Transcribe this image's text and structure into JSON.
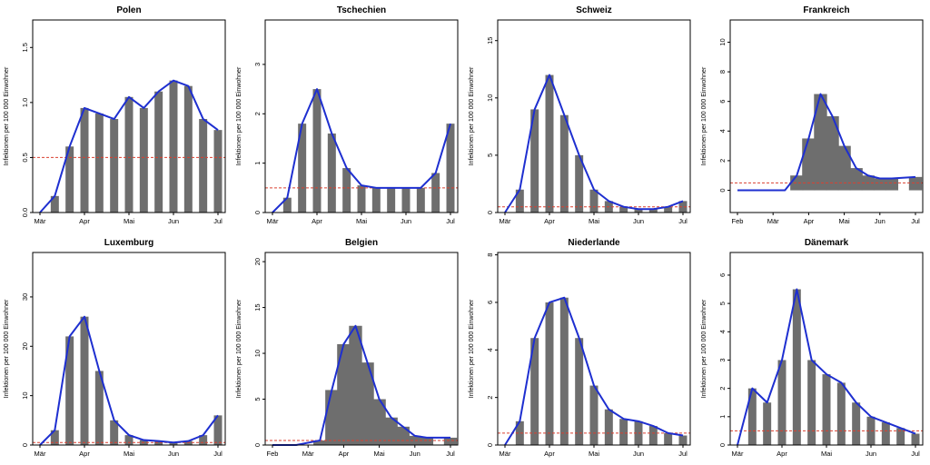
{
  "chart_data": [
    {
      "type": "bar",
      "title": "Polen",
      "ylabel": "Infektionen per 100 000 Einwohner",
      "x_ticks": [
        "Mär",
        "Apr",
        "Mai",
        "Jun",
        "Jul"
      ],
      "y_ticks": [
        "0.0",
        "0.5",
        "1.0",
        "1.5"
      ],
      "ylim": [
        0,
        1.75
      ],
      "threshold": 0.5,
      "series": [
        {
          "name": "",
          "kind": "bar",
          "x": [
            0,
            10,
            20,
            30,
            40,
            50,
            60,
            70,
            80,
            90,
            100,
            110,
            120
          ],
          "values": [
            0.0,
            0.15,
            0.6,
            0.95,
            0.9,
            0.85,
            1.05,
            0.95,
            1.1,
            1.2,
            1.15,
            0.85,
            0.75
          ]
        },
        {
          "name": "",
          "kind": "line",
          "x": [
            0,
            10,
            20,
            30,
            40,
            50,
            60,
            70,
            80,
            90,
            100,
            110,
            120
          ],
          "values": [
            0.0,
            0.15,
            0.6,
            0.95,
            0.9,
            0.85,
            1.05,
            0.95,
            1.1,
            1.2,
            1.15,
            0.85,
            0.75
          ]
        }
      ]
    },
    {
      "type": "bar",
      "title": "Tschechien",
      "ylabel": "Infektionen per 100 000 Einwohner",
      "x_ticks": [
        "Mär",
        "Apr",
        "Mai",
        "Jun",
        "Jul"
      ],
      "y_ticks": [
        "0",
        "1",
        "2",
        "3"
      ],
      "ylim": [
        0,
        3.9
      ],
      "threshold": 0.5,
      "series": [
        {
          "name": "",
          "kind": "bar",
          "x": [
            0,
            10,
            20,
            30,
            40,
            50,
            60,
            70,
            80,
            90,
            100,
            110,
            120
          ],
          "values": [
            0.0,
            0.3,
            1.8,
            2.5,
            1.6,
            0.9,
            0.55,
            0.5,
            0.5,
            0.5,
            0.5,
            0.8,
            1.8
          ]
        },
        {
          "name": "",
          "kind": "line",
          "x": [
            0,
            10,
            20,
            30,
            40,
            50,
            60,
            70,
            80,
            90,
            100,
            110,
            120
          ],
          "values": [
            0.0,
            0.3,
            1.8,
            2.5,
            1.6,
            0.9,
            0.55,
            0.5,
            0.5,
            0.5,
            0.5,
            0.8,
            1.8
          ]
        }
      ]
    },
    {
      "type": "bar",
      "title": "Schweiz",
      "ylabel": "Infektionen per 100 000 Einwohner",
      "x_ticks": [
        "Mär",
        "Apr",
        "Mai",
        "Jun",
        "Jul"
      ],
      "y_ticks": [
        "0",
        "5",
        "10",
        "15"
      ],
      "ylim": [
        0,
        16.8
      ],
      "threshold": 0.5,
      "series": [
        {
          "name": "",
          "kind": "bar",
          "x": [
            0,
            10,
            20,
            30,
            40,
            50,
            60,
            70,
            80,
            90,
            100,
            110,
            120
          ],
          "values": [
            0.0,
            2.0,
            9.0,
            12.0,
            8.5,
            5.0,
            2.0,
            1.0,
            0.5,
            0.3,
            0.3,
            0.5,
            1.0
          ]
        },
        {
          "name": "",
          "kind": "line",
          "x": [
            0,
            10,
            20,
            30,
            40,
            50,
            60,
            70,
            80,
            90,
            100,
            110,
            120
          ],
          "values": [
            0.0,
            2.0,
            9.0,
            12.0,
            8.5,
            5.0,
            2.0,
            1.0,
            0.5,
            0.3,
            0.3,
            0.5,
            1.0
          ]
        }
      ]
    },
    {
      "type": "bar",
      "title": "Frankreich",
      "ylabel": "Infektionen per 100 000 Einwohner",
      "x_ticks": [
        "Feb",
        "Mär",
        "Apr",
        "Mai",
        "Jun",
        "Jul"
      ],
      "y_ticks": [
        "0",
        "2",
        "4",
        "6",
        "8",
        "10"
      ],
      "ylim": [
        -1.5,
        11.5
      ],
      "threshold": 0.5,
      "series": [
        {
          "name": "",
          "kind": "bar",
          "x": [
            0,
            20,
            40,
            50,
            60,
            70,
            80,
            90,
            100,
            110,
            120,
            130,
            150
          ],
          "values": [
            0.0,
            0.0,
            0.0,
            1.0,
            3.5,
            6.5,
            5.0,
            3.0,
            1.5,
            1.0,
            0.8,
            0.8,
            0.9
          ]
        },
        {
          "name": "",
          "kind": "line",
          "x": [
            0,
            20,
            40,
            50,
            60,
            70,
            80,
            90,
            100,
            110,
            120,
            130,
            150
          ],
          "values": [
            0.0,
            0.0,
            0.0,
            1.0,
            3.5,
            6.5,
            5.0,
            3.0,
            1.5,
            1.0,
            0.8,
            0.8,
            0.9
          ]
        }
      ]
    },
    {
      "type": "bar",
      "title": "Luxemburg",
      "ylabel": "Infektionen per 100 000 Einwohner",
      "x_ticks": [
        "Mär",
        "Apr",
        "Mai",
        "Jun",
        "Jul"
      ],
      "y_ticks": [
        "0",
        "10",
        "20",
        "30"
      ],
      "ylim": [
        0,
        39
      ],
      "threshold": 0.5,
      "series": [
        {
          "name": "",
          "kind": "bar",
          "x": [
            0,
            10,
            20,
            30,
            40,
            50,
            60,
            70,
            80,
            90,
            100,
            110,
            120
          ],
          "values": [
            0.0,
            3.0,
            22.0,
            26.0,
            15.0,
            5.0,
            2.0,
            1.0,
            0.8,
            0.5,
            0.8,
            2.0,
            6.0
          ]
        },
        {
          "name": "",
          "kind": "line",
          "x": [
            0,
            10,
            20,
            30,
            40,
            50,
            60,
            70,
            80,
            90,
            100,
            110,
            120
          ],
          "values": [
            0.0,
            3.0,
            22.0,
            26.0,
            15.0,
            5.0,
            2.0,
            1.0,
            0.8,
            0.5,
            0.8,
            2.0,
            6.0
          ]
        }
      ]
    },
    {
      "type": "bar",
      "title": "Belgien",
      "ylabel": "Infektionen per 100 000 Einwohner",
      "x_ticks": [
        "Feb",
        "Mär",
        "Apr",
        "Mai",
        "Jun",
        "Jul"
      ],
      "y_ticks": [
        "0",
        "5",
        "10",
        "15",
        "20"
      ],
      "ylim": [
        0,
        21
      ],
      "threshold": 0.5,
      "series": [
        {
          "name": "",
          "kind": "bar",
          "x": [
            0,
            20,
            40,
            50,
            60,
            70,
            80,
            90,
            100,
            110,
            120,
            130,
            150
          ],
          "values": [
            0.0,
            0.0,
            0.5,
            6.0,
            11.0,
            13.0,
            9.0,
            5.0,
            3.0,
            2.0,
            1.0,
            0.8,
            0.8
          ]
        },
        {
          "name": "",
          "kind": "line",
          "x": [
            0,
            20,
            40,
            50,
            60,
            70,
            80,
            90,
            100,
            110,
            120,
            130,
            150
          ],
          "values": [
            0.0,
            0.0,
            0.5,
            6.0,
            11.0,
            13.0,
            9.0,
            5.0,
            3.0,
            2.0,
            1.0,
            0.8,
            0.8
          ]
        }
      ]
    },
    {
      "type": "bar",
      "title": "Niederlande",
      "ylabel": "Infektionen per 100 000 Einwohner",
      "x_ticks": [
        "Mär",
        "Apr",
        "Mai",
        "Jun",
        "Jul"
      ],
      "y_ticks": [
        "0",
        "2",
        "4",
        "6",
        "8"
      ],
      "ylim": [
        0,
        8.1
      ],
      "threshold": 0.5,
      "series": [
        {
          "name": "",
          "kind": "bar",
          "x": [
            0,
            10,
            20,
            30,
            40,
            50,
            60,
            70,
            80,
            90,
            100,
            110,
            120
          ],
          "values": [
            0.0,
            1.0,
            4.5,
            6.0,
            6.2,
            4.5,
            2.5,
            1.5,
            1.1,
            1.0,
            0.8,
            0.5,
            0.4
          ]
        },
        {
          "name": "",
          "kind": "line",
          "x": [
            0,
            10,
            20,
            30,
            40,
            50,
            60,
            70,
            80,
            90,
            100,
            110,
            120
          ],
          "values": [
            0.0,
            1.0,
            4.5,
            6.0,
            6.2,
            4.5,
            2.5,
            1.5,
            1.1,
            1.0,
            0.8,
            0.5,
            0.4
          ]
        }
      ]
    },
    {
      "type": "bar",
      "title": "Dänemark",
      "ylabel": "Infektionen per 100 000 Einwohner",
      "x_ticks": [
        "Mär",
        "Apr",
        "Mai",
        "Jun",
        "Jul"
      ],
      "y_ticks": [
        "0",
        "1",
        "2",
        "3",
        "4",
        "5",
        "6"
      ],
      "ylim": [
        0,
        6.8
      ],
      "threshold": 0.5,
      "series": [
        {
          "name": "",
          "kind": "bar",
          "x": [
            0,
            10,
            20,
            30,
            40,
            50,
            60,
            70,
            80,
            90,
            100,
            110,
            120
          ],
          "values": [
            0.0,
            2.0,
            1.5,
            3.0,
            5.5,
            3.0,
            2.5,
            2.2,
            1.5,
            1.0,
            0.8,
            0.6,
            0.4
          ]
        },
        {
          "name": "",
          "kind": "line",
          "x": [
            0,
            10,
            20,
            30,
            40,
            50,
            60,
            70,
            80,
            90,
            100,
            110,
            120
          ],
          "values": [
            0.0,
            2.0,
            1.5,
            3.0,
            5.5,
            3.0,
            2.5,
            2.2,
            1.5,
            1.0,
            0.8,
            0.6,
            0.4
          ]
        }
      ]
    }
  ]
}
